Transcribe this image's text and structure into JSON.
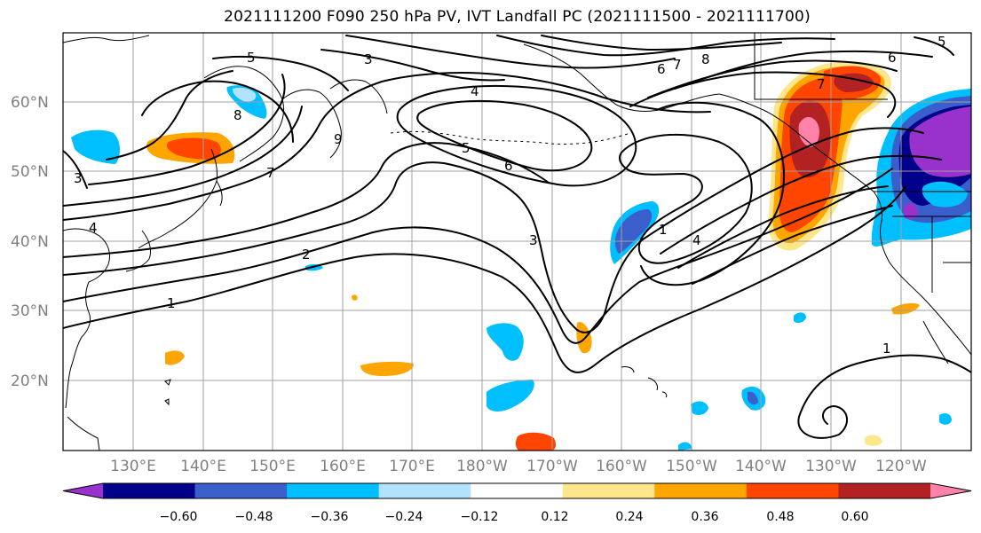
{
  "title": "2021111200 F090 250 hPa PV, IVT Landfall PC (2021111500 - 2021111700)",
  "axes": {
    "lat_ticks": [
      "60°N",
      "50°N",
      "40°N",
      "30°N",
      "20°N"
    ],
    "lon_ticks": [
      "130°E",
      "140°E",
      "150°E",
      "160°E",
      "170°E",
      "180°W",
      "170°W",
      "160°W",
      "150°W",
      "140°W",
      "130°W",
      "120°W"
    ],
    "grid": true
  },
  "colorbar": {
    "ticks": [
      "−0.60",
      "−0.48",
      "−0.36",
      "−0.24",
      "−0.12",
      "0.12",
      "0.24",
      "0.36",
      "0.48",
      "0.60"
    ],
    "colors": [
      "#9932cc",
      "#00008b",
      "#3a5fcd",
      "#00bfff",
      "#b2e2ff",
      "#ffffff",
      "#ffe68a",
      "#ffa500",
      "#ff4500",
      "#b22222",
      "#ff82ab"
    ],
    "extend": "both"
  },
  "contour_labels": [
    "5",
    "3",
    "7",
    "6",
    "8",
    "4",
    "8",
    "9",
    "7",
    "3",
    "4",
    "5",
    "6",
    "2",
    "1",
    "3",
    "1",
    "4",
    "7",
    "6",
    "5",
    "1"
  ],
  "colors": {
    "contour": "#000000",
    "grid": "#a0a0a0",
    "coast": "#000000"
  }
}
